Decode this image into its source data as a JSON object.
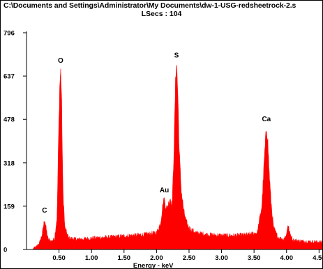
{
  "window": {
    "title": "C:\\Documents and Settings\\Administrator\\My Documents\\dw-1-USG-redsheetrock-2.s",
    "subtitle": "LSecs : 104"
  },
  "chart_data": {
    "type": "area",
    "title": "C:\\Documents and Settings\\Administrator\\My Documents\\dw-1-USG-redsheetrock-2.s",
    "subtitle": "LSecs : 104",
    "xlabel": "Energy - keV",
    "ylabel": "",
    "xlim": [
      0.0,
      4.55
    ],
    "ylim": [
      0,
      796
    ],
    "x_ticks": [
      "0.50",
      "1.00",
      "1.50",
      "2.00",
      "2.50",
      "3.00",
      "3.50",
      "4.00",
      "4.50"
    ],
    "y_ticks": [
      "0",
      "159",
      "318",
      "478",
      "637",
      "796"
    ],
    "grid": false,
    "fill_color": "#ff0000",
    "peaks": [
      {
        "element": "C",
        "energy": 0.277,
        "counts": 115
      },
      {
        "element": "O",
        "energy": 0.525,
        "counts": 665
      },
      {
        "element": "Au",
        "energy": 2.12,
        "counts": 190
      },
      {
        "element": "S",
        "energy": 2.307,
        "counts": 685
      },
      {
        "element": "Ca",
        "energy": 3.69,
        "counts": 450
      }
    ],
    "spectrum": [
      [
        0.1,
        5
      ],
      [
        0.15,
        10
      ],
      [
        0.2,
        25
      ],
      [
        0.24,
        55
      ],
      [
        0.27,
        100
      ],
      [
        0.28,
        112
      ],
      [
        0.3,
        80
      ],
      [
        0.33,
        40
      ],
      [
        0.38,
        30
      ],
      [
        0.43,
        40
      ],
      [
        0.47,
        120
      ],
      [
        0.49,
        380
      ],
      [
        0.51,
        600
      ],
      [
        0.525,
        660
      ],
      [
        0.54,
        560
      ],
      [
        0.56,
        220
      ],
      [
        0.59,
        80
      ],
      [
        0.65,
        42
      ],
      [
        0.8,
        38
      ],
      [
        1.0,
        42
      ],
      [
        1.2,
        45
      ],
      [
        1.4,
        48
      ],
      [
        1.6,
        52
      ],
      [
        1.8,
        55
      ],
      [
        2.0,
        62
      ],
      [
        2.06,
        95
      ],
      [
        2.1,
        170
      ],
      [
        2.12,
        185
      ],
      [
        2.15,
        150
      ],
      [
        2.18,
        165
      ],
      [
        2.21,
        190
      ],
      [
        2.24,
        160
      ],
      [
        2.27,
        380
      ],
      [
        2.29,
        600
      ],
      [
        2.3,
        670
      ],
      [
        2.31,
        685
      ],
      [
        2.33,
        560
      ],
      [
        2.35,
        360
      ],
      [
        2.38,
        220
      ],
      [
        2.42,
        140
      ],
      [
        2.46,
        100
      ],
      [
        2.5,
        80
      ],
      [
        2.6,
        62
      ],
      [
        2.8,
        55
      ],
      [
        3.0,
        52
      ],
      [
        3.2,
        52
      ],
      [
        3.4,
        55
      ],
      [
        3.55,
        62
      ],
      [
        3.62,
        160
      ],
      [
        3.66,
        340
      ],
      [
        3.69,
        450
      ],
      [
        3.71,
        410
      ],
      [
        3.73,
        300
      ],
      [
        3.76,
        180
      ],
      [
        3.8,
        80
      ],
      [
        3.87,
        45
      ],
      [
        3.95,
        38
      ],
      [
        4.0,
        55
      ],
      [
        4.02,
        95
      ],
      [
        4.05,
        60
      ],
      [
        4.1,
        35
      ],
      [
        4.3,
        30
      ],
      [
        4.5,
        28
      ],
      [
        4.55,
        28
      ]
    ]
  }
}
